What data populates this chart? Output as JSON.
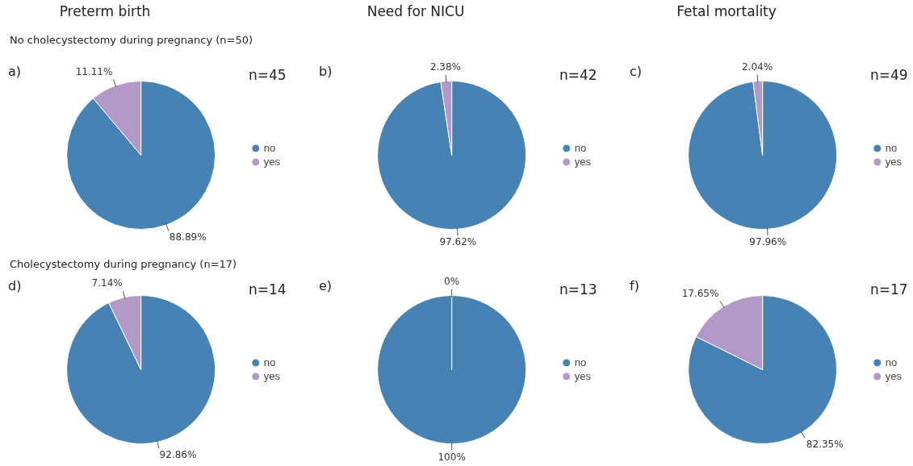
{
  "chart_data": [
    {
      "type": "pie",
      "title": "Preterm birth",
      "subtitle": "No cholecystectomy during pregnancy (n=50)",
      "annotations": [
        "a)",
        "n=45"
      ],
      "categories": [
        "no",
        "yes"
      ],
      "values": [
        88.89,
        11.11
      ],
      "value_labels": [
        "88.89%",
        "11.11%"
      ],
      "colors": [
        "#4682b4",
        "#b399c8"
      ],
      "legend": "right"
    },
    {
      "type": "pie",
      "title": "Need for NICU",
      "annotations": [
        "b)",
        "n=42"
      ],
      "categories": [
        "no",
        "yes"
      ],
      "values": [
        97.62,
        2.38
      ],
      "value_labels": [
        "97.62%",
        "2.38%"
      ],
      "colors": [
        "#4682b4",
        "#b399c8"
      ],
      "legend": "right"
    },
    {
      "type": "pie",
      "title": "Fetal mortality",
      "annotations": [
        "c)",
        "n=49"
      ],
      "categories": [
        "no",
        "yes"
      ],
      "values": [
        97.96,
        2.04
      ],
      "value_labels": [
        "97.96%",
        "2.04%"
      ],
      "colors": [
        "#4682b4",
        "#b399c8"
      ],
      "legend": "right"
    },
    {
      "type": "pie",
      "subtitle": "Cholecystectomy during pregnancy (n=17)",
      "annotations": [
        "d)",
        "n=14"
      ],
      "categories": [
        "no",
        "yes"
      ],
      "values": [
        92.86,
        7.14
      ],
      "value_labels": [
        "92.86%",
        "7.14%"
      ],
      "colors": [
        "#4682b4",
        "#b399c8"
      ],
      "legend": "right"
    },
    {
      "type": "pie",
      "annotations": [
        "e)",
        "n=13"
      ],
      "categories": [
        "no",
        "yes"
      ],
      "values": [
        100,
        0
      ],
      "value_labels": [
        "100%",
        "0%"
      ],
      "colors": [
        "#4682b4",
        "#b399c8"
      ],
      "legend": "right"
    },
    {
      "type": "pie",
      "annotations": [
        "f)",
        "n=17"
      ],
      "categories": [
        "no",
        "yes"
      ],
      "values": [
        82.35,
        17.65
      ],
      "value_labels": [
        "82.35%",
        "17.65%"
      ],
      "colors": [
        "#4682b4",
        "#b399c8"
      ],
      "legend": "right"
    }
  ]
}
